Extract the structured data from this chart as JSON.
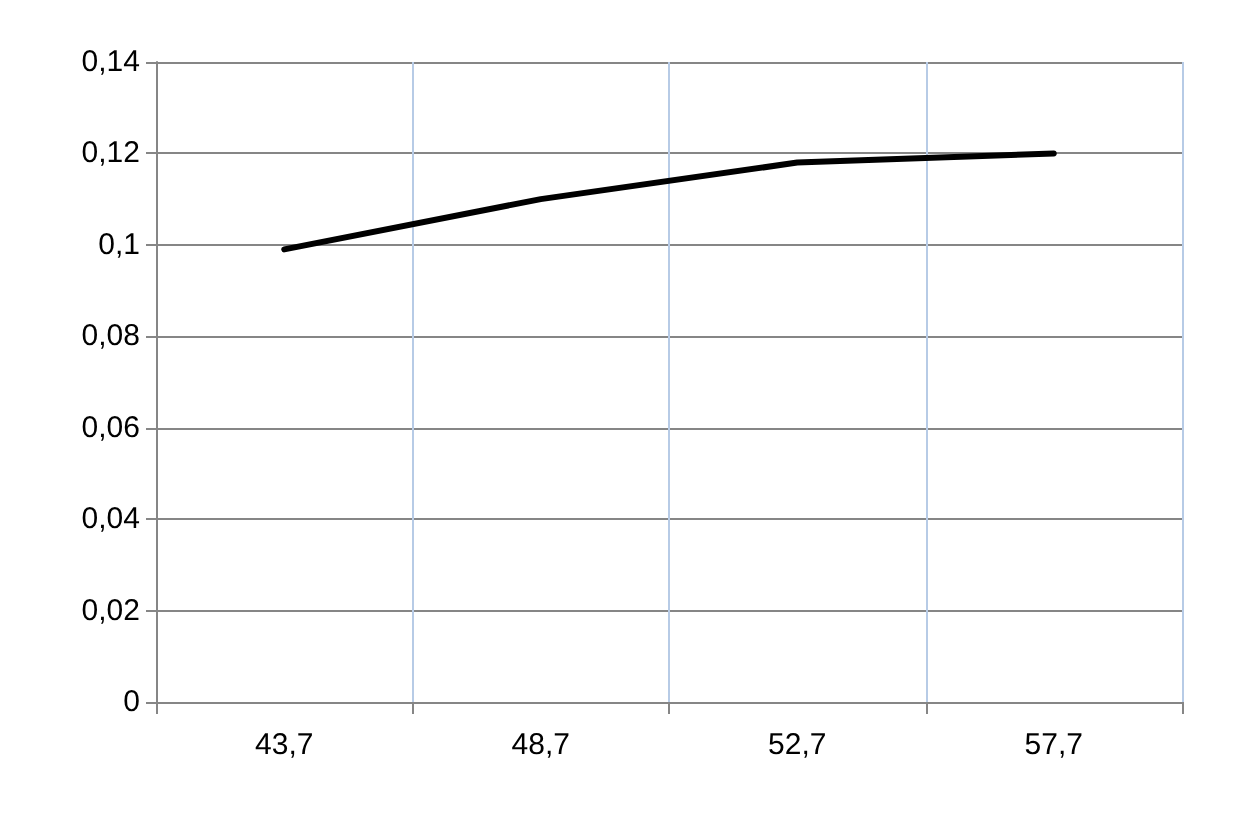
{
  "chart_data": {
    "type": "line",
    "categories": [
      "43,7",
      "48,7",
      "52,7",
      "57,7"
    ],
    "series": [
      {
        "color": "#000000",
        "values": [
          0.099,
          0.11,
          0.118,
          0.12
        ]
      }
    ],
    "ylim": [
      0,
      0.14
    ],
    "yticks": [
      0,
      {
        "value": 0.02,
        "label": "0,02"
      },
      {
        "value": 0.04,
        "label": "0,04"
      },
      {
        "value": 0.06,
        "label": "0,06"
      },
      {
        "value": 0.08,
        "label": "0,08"
      },
      {
        "value": 0.1,
        "label": "0,1"
      },
      {
        "value": 0.12,
        "label": "0,12"
      },
      {
        "value": 0.14,
        "label": "0,14"
      }
    ],
    "grid": true,
    "marker": "none",
    "line_style": "solid"
  }
}
